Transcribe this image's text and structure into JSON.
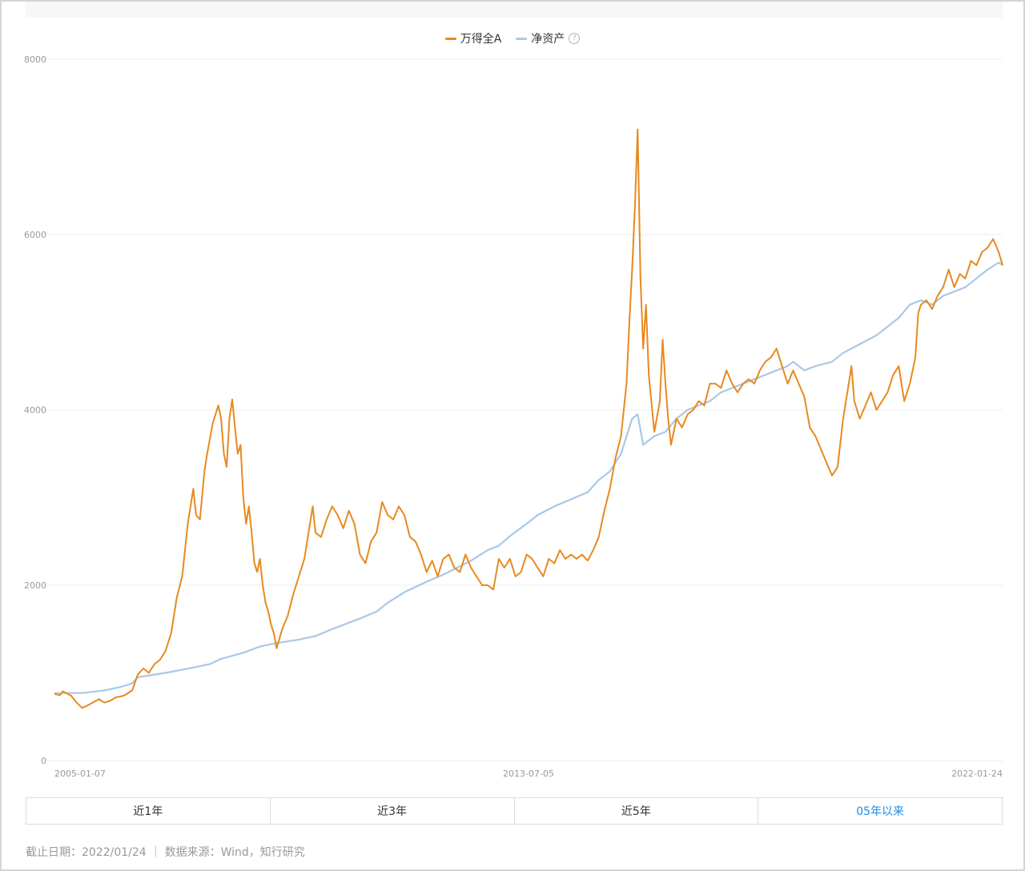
{
  "legend": {
    "items": [
      {
        "label": "万得全A",
        "color": "#e8891f"
      },
      {
        "label": "净资产",
        "color": "#a9c8e8"
      }
    ],
    "help_icon": "question-circle-icon",
    "help_glyph": "?"
  },
  "tabs": [
    {
      "label": "近1年",
      "active": false
    },
    {
      "label": "近3年",
      "active": false
    },
    {
      "label": "近5年",
      "active": false
    },
    {
      "label": "05年以来",
      "active": true
    }
  ],
  "footer": {
    "note": "截止日期：2022/01/24 ｜ 数据来源：Wind，知行研究"
  },
  "chart_data": {
    "type": "line",
    "title": "",
    "xlabel": "",
    "ylabel": "",
    "x_tick_labels": [
      "2005-01-07",
      "2013-07-05",
      "2022-01-24"
    ],
    "y_ticks": [
      0,
      2000,
      4000,
      6000,
      8000
    ],
    "ylim": [
      0,
      8000
    ],
    "xlim": [
      2005.0,
      2022.07
    ],
    "grid": true,
    "legend_position": "top-center",
    "series": [
      {
        "name": "万得全A",
        "color": "#e8891f",
        "points": [
          [
            2005.0,
            760
          ],
          [
            2005.1,
            745
          ],
          [
            2005.15,
            790
          ],
          [
            2005.3,
            740
          ],
          [
            2005.4,
            660
          ],
          [
            2005.5,
            600
          ],
          [
            2005.6,
            630
          ],
          [
            2005.8,
            700
          ],
          [
            2005.9,
            660
          ],
          [
            2006.0,
            680
          ],
          [
            2006.1,
            720
          ],
          [
            2006.25,
            740
          ],
          [
            2006.4,
            800
          ],
          [
            2006.5,
            980
          ],
          [
            2006.6,
            1050
          ],
          [
            2006.7,
            1000
          ],
          [
            2006.8,
            1100
          ],
          [
            2006.9,
            1150
          ],
          [
            2007.0,
            1250
          ],
          [
            2007.1,
            1450
          ],
          [
            2007.2,
            1850
          ],
          [
            2007.3,
            2100
          ],
          [
            2007.4,
            2700
          ],
          [
            2007.5,
            3100
          ],
          [
            2007.55,
            2800
          ],
          [
            2007.62,
            2750
          ],
          [
            2007.7,
            3300
          ],
          [
            2007.75,
            3500
          ],
          [
            2007.85,
            3850
          ],
          [
            2007.95,
            4050
          ],
          [
            2008.0,
            3900
          ],
          [
            2008.05,
            3500
          ],
          [
            2008.1,
            3350
          ],
          [
            2008.15,
            3900
          ],
          [
            2008.2,
            4120
          ],
          [
            2008.25,
            3800
          ],
          [
            2008.3,
            3500
          ],
          [
            2008.35,
            3600
          ],
          [
            2008.4,
            3000
          ],
          [
            2008.45,
            2700
          ],
          [
            2008.5,
            2900
          ],
          [
            2008.55,
            2600
          ],
          [
            2008.6,
            2250
          ],
          [
            2008.65,
            2150
          ],
          [
            2008.7,
            2300
          ],
          [
            2008.75,
            2000
          ],
          [
            2008.8,
            1800
          ],
          [
            2008.85,
            1700
          ],
          [
            2008.9,
            1550
          ],
          [
            2008.95,
            1450
          ],
          [
            2009.0,
            1280
          ],
          [
            2009.1,
            1500
          ],
          [
            2009.2,
            1650
          ],
          [
            2009.3,
            1900
          ],
          [
            2009.4,
            2100
          ],
          [
            2009.5,
            2300
          ],
          [
            2009.6,
            2700
          ],
          [
            2009.65,
            2900
          ],
          [
            2009.7,
            2600
          ],
          [
            2009.8,
            2550
          ],
          [
            2009.9,
            2750
          ],
          [
            2010.0,
            2900
          ],
          [
            2010.1,
            2800
          ],
          [
            2010.2,
            2650
          ],
          [
            2010.3,
            2850
          ],
          [
            2010.4,
            2700
          ],
          [
            2010.5,
            2350
          ],
          [
            2010.6,
            2250
          ],
          [
            2010.7,
            2500
          ],
          [
            2010.8,
            2600
          ],
          [
            2010.9,
            2950
          ],
          [
            2011.0,
            2800
          ],
          [
            2011.1,
            2750
          ],
          [
            2011.2,
            2900
          ],
          [
            2011.3,
            2800
          ],
          [
            2011.4,
            2550
          ],
          [
            2011.5,
            2500
          ],
          [
            2011.6,
            2350
          ],
          [
            2011.7,
            2150
          ],
          [
            2011.8,
            2280
          ],
          [
            2011.9,
            2100
          ],
          [
            2012.0,
            2300
          ],
          [
            2012.1,
            2350
          ],
          [
            2012.2,
            2200
          ],
          [
            2012.3,
            2150
          ],
          [
            2012.4,
            2350
          ],
          [
            2012.5,
            2200
          ],
          [
            2012.6,
            2100
          ],
          [
            2012.7,
            2000
          ],
          [
            2012.8,
            2000
          ],
          [
            2012.9,
            1950
          ],
          [
            2013.0,
            2300
          ],
          [
            2013.1,
            2200
          ],
          [
            2013.2,
            2300
          ],
          [
            2013.3,
            2100
          ],
          [
            2013.4,
            2150
          ],
          [
            2013.5,
            2350
          ],
          [
            2013.6,
            2300
          ],
          [
            2013.7,
            2200
          ],
          [
            2013.8,
            2100
          ],
          [
            2013.9,
            2300
          ],
          [
            2014.0,
            2250
          ],
          [
            2014.1,
            2400
          ],
          [
            2014.2,
            2300
          ],
          [
            2014.3,
            2350
          ],
          [
            2014.4,
            2300
          ],
          [
            2014.5,
            2350
          ],
          [
            2014.6,
            2280
          ],
          [
            2014.7,
            2400
          ],
          [
            2014.8,
            2550
          ],
          [
            2014.9,
            2850
          ],
          [
            2015.0,
            3100
          ],
          [
            2015.1,
            3450
          ],
          [
            2015.2,
            3700
          ],
          [
            2015.3,
            4300
          ],
          [
            2015.35,
            5000
          ],
          [
            2015.4,
            5600
          ],
          [
            2015.45,
            6300
          ],
          [
            2015.5,
            7200
          ],
          [
            2015.55,
            5500
          ],
          [
            2015.6,
            4700
          ],
          [
            2015.65,
            5200
          ],
          [
            2015.7,
            4400
          ],
          [
            2015.8,
            3750
          ],
          [
            2015.9,
            4100
          ],
          [
            2015.95,
            4800
          ],
          [
            2016.0,
            4300
          ],
          [
            2016.05,
            3900
          ],
          [
            2016.1,
            3600
          ],
          [
            2016.2,
            3900
          ],
          [
            2016.3,
            3800
          ],
          [
            2016.4,
            3950
          ],
          [
            2016.5,
            4000
          ],
          [
            2016.6,
            4100
          ],
          [
            2016.7,
            4050
          ],
          [
            2016.8,
            4300
          ],
          [
            2016.9,
            4300
          ],
          [
            2017.0,
            4250
          ],
          [
            2017.1,
            4450
          ],
          [
            2017.2,
            4300
          ],
          [
            2017.3,
            4200
          ],
          [
            2017.4,
            4300
          ],
          [
            2017.5,
            4350
          ],
          [
            2017.6,
            4300
          ],
          [
            2017.7,
            4450
          ],
          [
            2017.8,
            4550
          ],
          [
            2017.9,
            4600
          ],
          [
            2018.0,
            4700
          ],
          [
            2018.1,
            4500
          ],
          [
            2018.2,
            4300
          ],
          [
            2018.3,
            4450
          ],
          [
            2018.4,
            4300
          ],
          [
            2018.5,
            4150
          ],
          [
            2018.6,
            3800
          ],
          [
            2018.7,
            3700
          ],
          [
            2018.8,
            3550
          ],
          [
            2018.9,
            3400
          ],
          [
            2019.0,
            3250
          ],
          [
            2019.1,
            3350
          ],
          [
            2019.2,
            3900
          ],
          [
            2019.3,
            4300
          ],
          [
            2019.35,
            4500
          ],
          [
            2019.4,
            4100
          ],
          [
            2019.5,
            3900
          ],
          [
            2019.6,
            4050
          ],
          [
            2019.7,
            4200
          ],
          [
            2019.8,
            4000
          ],
          [
            2019.9,
            4100
          ],
          [
            2020.0,
            4200
          ],
          [
            2020.1,
            4400
          ],
          [
            2020.2,
            4500
          ],
          [
            2020.3,
            4100
          ],
          [
            2020.4,
            4300
          ],
          [
            2020.5,
            4600
          ],
          [
            2020.55,
            5100
          ],
          [
            2020.6,
            5200
          ],
          [
            2020.7,
            5250
          ],
          [
            2020.8,
            5150
          ],
          [
            2020.9,
            5300
          ],
          [
            2021.0,
            5400
          ],
          [
            2021.1,
            5600
          ],
          [
            2021.2,
            5400
          ],
          [
            2021.3,
            5550
          ],
          [
            2021.4,
            5500
          ],
          [
            2021.5,
            5700
          ],
          [
            2021.6,
            5650
          ],
          [
            2021.7,
            5800
          ],
          [
            2021.8,
            5850
          ],
          [
            2021.9,
            5950
          ],
          [
            2022.0,
            5800
          ],
          [
            2022.07,
            5650
          ]
        ]
      },
      {
        "name": "净资产",
        "color": "#a9c8e8",
        "points": [
          [
            2005.0,
            770
          ],
          [
            2005.5,
            770
          ],
          [
            2005.9,
            800
          ],
          [
            2006.2,
            840
          ],
          [
            2006.4,
            880
          ],
          [
            2006.5,
            950
          ],
          [
            2007.0,
            1000
          ],
          [
            2007.5,
            1060
          ],
          [
            2007.8,
            1100
          ],
          [
            2008.0,
            1160
          ],
          [
            2008.4,
            1230
          ],
          [
            2008.7,
            1300
          ],
          [
            2009.0,
            1340
          ],
          [
            2009.4,
            1380
          ],
          [
            2009.7,
            1420
          ],
          [
            2010.0,
            1500
          ],
          [
            2010.5,
            1620
          ],
          [
            2010.8,
            1700
          ],
          [
            2011.0,
            1800
          ],
          [
            2011.3,
            1920
          ],
          [
            2011.7,
            2040
          ],
          [
            2012.0,
            2120
          ],
          [
            2012.5,
            2280
          ],
          [
            2012.8,
            2400
          ],
          [
            2013.0,
            2450
          ],
          [
            2013.2,
            2560
          ],
          [
            2013.5,
            2700
          ],
          [
            2013.7,
            2800
          ],
          [
            2014.0,
            2900
          ],
          [
            2014.3,
            2980
          ],
          [
            2014.6,
            3060
          ],
          [
            2014.8,
            3200
          ],
          [
            2015.0,
            3300
          ],
          [
            2015.2,
            3500
          ],
          [
            2015.4,
            3900
          ],
          [
            2015.5,
            3950
          ],
          [
            2015.6,
            3600
          ],
          [
            2015.8,
            3700
          ],
          [
            2016.0,
            3750
          ],
          [
            2016.2,
            3900
          ],
          [
            2016.4,
            4000
          ],
          [
            2016.6,
            4050
          ],
          [
            2016.8,
            4100
          ],
          [
            2017.0,
            4200
          ],
          [
            2017.2,
            4250
          ],
          [
            2017.4,
            4300
          ],
          [
            2017.6,
            4350
          ],
          [
            2017.8,
            4400
          ],
          [
            2018.0,
            4450
          ],
          [
            2018.2,
            4500
          ],
          [
            2018.3,
            4550
          ],
          [
            2018.5,
            4450
          ],
          [
            2018.7,
            4500
          ],
          [
            2019.0,
            4550
          ],
          [
            2019.2,
            4650
          ],
          [
            2019.5,
            4750
          ],
          [
            2019.8,
            4850
          ],
          [
            2020.0,
            4950
          ],
          [
            2020.2,
            5050
          ],
          [
            2020.4,
            5200
          ],
          [
            2020.6,
            5250
          ],
          [
            2020.8,
            5200
          ],
          [
            2021.0,
            5300
          ],
          [
            2021.2,
            5350
          ],
          [
            2021.4,
            5400
          ],
          [
            2021.6,
            5500
          ],
          [
            2021.8,
            5600
          ],
          [
            2022.0,
            5680
          ],
          [
            2022.07,
            5650
          ]
        ]
      }
    ]
  }
}
